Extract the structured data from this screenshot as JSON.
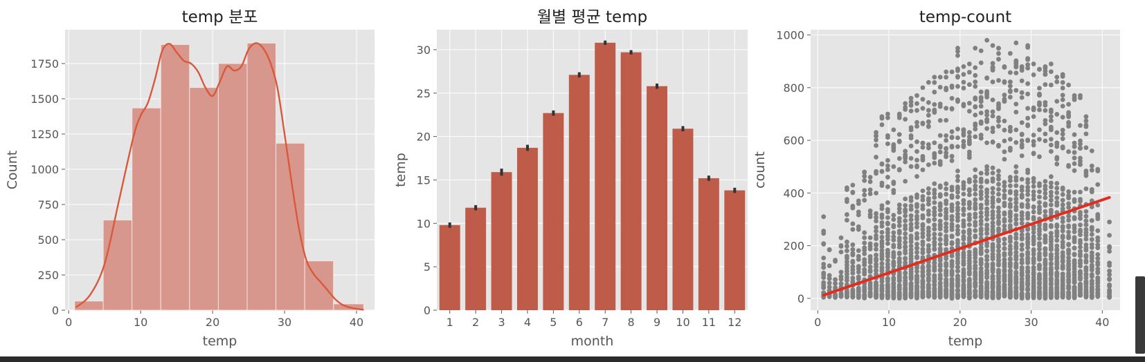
{
  "colors": {
    "panel_bg": "#e5e5e5",
    "hist_fill": "#d8978c",
    "hist_line": "#d9583c",
    "bar_fill": "#be5b49",
    "err": "#333333",
    "scatter": "#808080",
    "regression": "#e12d1f"
  },
  "chart_data": [
    {
      "type": "bar",
      "subtype": "histogram-with-kde",
      "title": "temp 분포",
      "xlabel": "temp",
      "ylabel": "Count",
      "xlim": [
        -0.5,
        42.5
      ],
      "ylim": [
        0,
        1990
      ],
      "xticks": [
        0,
        10,
        20,
        30,
        40
      ],
      "yticks": [
        0,
        250,
        500,
        750,
        1000,
        1250,
        1500,
        1750
      ],
      "bins": [
        {
          "x0": 0.82,
          "x1": 4.8,
          "count": 65
        },
        {
          "x0": 4.8,
          "x1": 8.8,
          "count": 640
        },
        {
          "x0": 8.8,
          "x1": 12.8,
          "count": 1435
        },
        {
          "x0": 12.8,
          "x1": 16.8,
          "count": 1885
        },
        {
          "x0": 16.8,
          "x1": 20.8,
          "count": 1580
        },
        {
          "x0": 20.8,
          "x1": 24.8,
          "count": 1750
        },
        {
          "x0": 24.8,
          "x1": 28.8,
          "count": 1895
        },
        {
          "x0": 28.8,
          "x1": 32.8,
          "count": 1185
        },
        {
          "x0": 32.8,
          "x1": 36.8,
          "count": 350
        },
        {
          "x0": 36.8,
          "x1": 41.0,
          "count": 45
        }
      ],
      "kde": {
        "x": [
          1,
          3,
          5,
          7,
          9,
          10,
          11,
          12,
          13,
          14,
          15,
          16,
          17,
          18,
          19,
          20,
          21,
          22,
          23,
          24,
          25,
          26,
          27,
          28,
          29,
          30,
          31,
          32,
          33,
          34,
          35,
          36,
          37,
          38,
          39,
          40,
          41
        ],
        "y": [
          20,
          110,
          330,
          780,
          1230,
          1380,
          1470,
          1640,
          1840,
          1890,
          1830,
          1770,
          1750,
          1690,
          1580,
          1520,
          1620,
          1730,
          1700,
          1730,
          1850,
          1895,
          1860,
          1760,
          1580,
          1250,
          900,
          580,
          360,
          260,
          200,
          140,
          80,
          40,
          20,
          10,
          3
        ]
      }
    },
    {
      "type": "bar",
      "title": "월별 평균 temp",
      "xlabel": "month",
      "ylabel": "temp",
      "ylim": [
        0,
        32.3
      ],
      "yticks": [
        0,
        5,
        10,
        15,
        20,
        25,
        30
      ],
      "categories": [
        "1",
        "2",
        "3",
        "4",
        "5",
        "6",
        "7",
        "8",
        "9",
        "10",
        "11",
        "12"
      ],
      "values": [
        9.8,
        11.8,
        15.9,
        18.7,
        22.7,
        27.1,
        30.8,
        29.7,
        25.8,
        20.9,
        15.2,
        13.8
      ],
      "errors": [
        0.3,
        0.3,
        0.4,
        0.35,
        0.3,
        0.3,
        0.25,
        0.25,
        0.3,
        0.3,
        0.3,
        0.3
      ]
    },
    {
      "type": "scatter",
      "title": "temp-count",
      "xlabel": "temp",
      "ylabel": "count",
      "xlim": [
        -1,
        42.5
      ],
      "ylim": [
        -45,
        1020
      ],
      "xticks": [
        0,
        10,
        20,
        30,
        40
      ],
      "yticks": [
        0,
        200,
        400,
        600,
        800,
        1000
      ],
      "temp_values": [
        0.82,
        1.64,
        2.46,
        3.28,
        4.1,
        4.92,
        5.74,
        6.56,
        7.38,
        8.2,
        9.02,
        9.84,
        10.66,
        11.48,
        12.3,
        13.12,
        13.94,
        14.76,
        15.58,
        16.4,
        17.22,
        18.04,
        18.86,
        19.68,
        20.5,
        21.32,
        22.14,
        22.96,
        23.78,
        24.6,
        25.42,
        26.24,
        27.06,
        27.88,
        28.7,
        29.52,
        30.34,
        31.16,
        31.98,
        32.8,
        33.62,
        34.44,
        35.26,
        36.08,
        36.9,
        37.72,
        38.54,
        39.36,
        41.0
      ],
      "count_max": [
        310,
        185,
        145,
        230,
        420,
        430,
        370,
        480,
        460,
        630,
        690,
        700,
        640,
        700,
        740,
        760,
        770,
        800,
        820,
        840,
        840,
        860,
        860,
        950,
        880,
        890,
        950,
        940,
        980,
        960,
        950,
        880,
        930,
        970,
        880,
        960,
        890,
        870,
        880,
        890,
        840,
        850,
        810,
        770,
        770,
        690,
        560,
        490,
        290
      ],
      "regression": {
        "x": [
          0.82,
          41.0
        ],
        "y": [
          12,
          383
        ]
      }
    }
  ]
}
